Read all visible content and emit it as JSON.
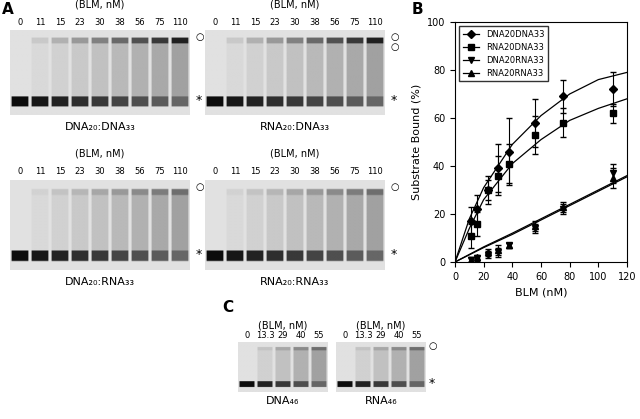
{
  "chart_data": {
    "panel_label": "B",
    "type": "line",
    "xlabel": "BLM (nM)",
    "ylabel": "Substrate Bound (%)",
    "xlim": [
      0,
      120
    ],
    "ylim": [
      0,
      100
    ],
    "xticks": [
      0,
      20,
      40,
      60,
      80,
      100,
      120
    ],
    "yticks": [
      0,
      20,
      40,
      60,
      80,
      100
    ],
    "legend": "upper left",
    "series": [
      {
        "name": "DNA20DNA33",
        "color": "#000000",
        "marker": "diamond",
        "line_style": "none",
        "x": [
          11,
          15,
          23,
          30,
          38,
          56,
          75,
          110
        ],
        "values": [
          17,
          22,
          30,
          39,
          46,
          58,
          69,
          72
        ],
        "errors": [
          6,
          6,
          6,
          10,
          14,
          10,
          7,
          7
        ],
        "fit": {
          "x": [
            0,
            10,
            20,
            40,
            60,
            80,
            100,
            120
          ],
          "values": [
            0,
            18,
            31,
            49,
            61,
            70,
            76,
            79
          ],
          "line_style": "solid"
        }
      },
      {
        "name": "RNA20DNA33",
        "color": "#000000",
        "marker": "square",
        "line_style": "none",
        "x": [
          11,
          15,
          23,
          30,
          38,
          56,
          75,
          110
        ],
        "values": [
          11,
          16,
          30,
          36,
          41,
          53,
          58,
          62
        ],
        "errors": [
          5,
          5,
          4,
          8,
          8,
          8,
          6,
          4
        ],
        "fit": {
          "x": [
            0,
            10,
            20,
            40,
            60,
            80,
            100,
            120
          ],
          "values": [
            0,
            14,
            26,
            41,
            51,
            59,
            64,
            68
          ],
          "line_style": "solid"
        }
      },
      {
        "name": "DNA20RNA33",
        "color": "#000000",
        "marker": "triangle_down",
        "line_style": "none",
        "x": [
          11,
          15,
          23,
          30,
          38,
          56,
          75,
          110
        ],
        "values": [
          1,
          1.5,
          3,
          4,
          7,
          14,
          22,
          37
        ],
        "errors": [
          1,
          1,
          1.5,
          2,
          1,
          2,
          2,
          4
        ],
        "fit": {
          "x": [
            0,
            20,
            40,
            60,
            80,
            100,
            120
          ],
          "values": [
            0,
            6,
            11.5,
            17.5,
            23.5,
            29.5,
            35.5
          ],
          "line_style": "solid"
        }
      },
      {
        "name": "RNA20RNA33",
        "color": "#000000",
        "marker": "triangle_up",
        "line_style": "none",
        "x": [
          11,
          15,
          23,
          30,
          38,
          56,
          75,
          110
        ],
        "values": [
          1,
          2,
          4,
          5,
          7,
          15,
          23,
          35
        ],
        "errors": [
          1,
          1,
          1.5,
          2,
          1,
          2,
          2,
          4
        ],
        "fit": {
          "x": [
            0,
            20,
            40,
            60,
            80,
            100,
            120
          ],
          "values": [
            0,
            6.3,
            12,
            18,
            24,
            30,
            36
          ],
          "line_style": "solid"
        }
      }
    ]
  },
  "gel_panels": [
    {
      "panel_label": "A",
      "gels": [
        {
          "header": "(BLM, nM)",
          "lanes": [
            0,
            11,
            15,
            23,
            30,
            38,
            56,
            75,
            110
          ],
          "caption": "DNA₂₀:DNA₃₃",
          "bound_marks": [
            "○"
          ],
          "free_mark": "*"
        },
        {
          "header": "(BLM, nM)",
          "lanes": [
            0,
            11,
            15,
            23,
            30,
            38,
            56,
            75,
            110
          ],
          "caption": "RNA₂₀:DNA₃₃",
          "bound_marks": [
            "○",
            "○"
          ],
          "free_mark": "*"
        },
        {
          "header": "(BLM, nM)",
          "lanes": [
            0,
            11,
            15,
            23,
            30,
            38,
            56,
            75,
            110
          ],
          "caption": "DNA₂₀:RNA₃₃",
          "bound_marks": [
            "○"
          ],
          "free_mark": "*"
        },
        {
          "header": "(BLM, nM)",
          "lanes": [
            0,
            11,
            15,
            23,
            30,
            38,
            56,
            75,
            110
          ],
          "caption": "RNA₂₀:RNA₃₃",
          "bound_marks": [
            "○"
          ],
          "free_mark": "*"
        }
      ]
    },
    {
      "panel_label": "C",
      "gels": [
        {
          "header": "(BLM, nM)",
          "lanes": [
            0,
            13.3,
            29,
            40,
            55
          ],
          "caption": "DNA₄₆",
          "bound_marks": [],
          "free_mark": null
        },
        {
          "header": "(BLM, nM)",
          "lanes": [
            0,
            13.3,
            29,
            40,
            55
          ],
          "caption": "RNA₄₆",
          "bound_marks": [
            "○"
          ],
          "free_mark": "*"
        }
      ]
    }
  ]
}
